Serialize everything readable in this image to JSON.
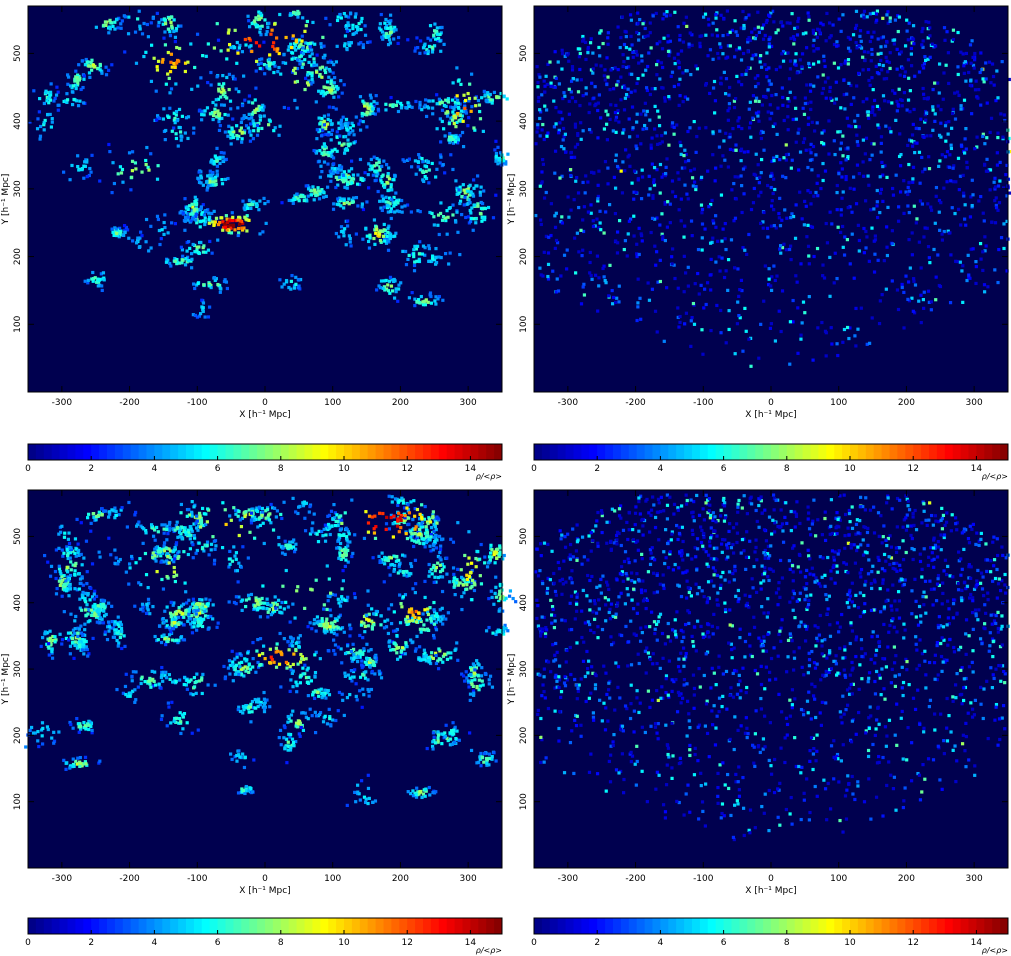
{
  "chart_data": [
    {
      "type": "heatmap",
      "panel": "top-left",
      "description_kind": "density",
      "xlabel": "X [h⁻¹ Mpc]",
      "ylabel": "Y [h⁻¹ Mpc]",
      "xlim": [
        -350,
        350
      ],
      "ylim": [
        0,
        570
      ],
      "x_ticks": [
        -300,
        -200,
        -100,
        0,
        100,
        200,
        300
      ],
      "y_ticks": [
        100,
        200,
        300,
        400,
        500
      ],
      "colorbar": {
        "label": "ρ/<ρ>",
        "range": [
          0,
          15
        ],
        "ticks": [
          0,
          2,
          4,
          6,
          8,
          10,
          12,
          14
        ]
      },
      "colormap": "jet",
      "background": "#00004f",
      "sparse": true,
      "seed": 11,
      "clusters": [
        {
          "x": -50,
          "y": 250,
          "weight": 8,
          "sx": 25,
          "sy": 8
        },
        {
          "x": 165,
          "y": 235,
          "weight": 4,
          "sx": 12,
          "sy": 10
        },
        {
          "x": 0,
          "y": 520,
          "weight": 6,
          "sx": 60,
          "sy": 25
        },
        {
          "x": -140,
          "y": 490,
          "weight": 5,
          "sx": 30,
          "sy": 20
        },
        {
          "x": 290,
          "y": 420,
          "weight": 5,
          "sx": 20,
          "sy": 30
        },
        {
          "x": -190,
          "y": 330,
          "weight": 3,
          "sx": 30,
          "sy": 15
        },
        {
          "x": 60,
          "y": 470,
          "weight": 4,
          "sx": 30,
          "sy": 20
        }
      ]
    },
    {
      "type": "heatmap",
      "panel": "top-right",
      "xlabel": "X [h⁻¹ Mpc]",
      "ylabel": "Y [h⁻¹ Mpc]",
      "xlim": [
        -350,
        350
      ],
      "ylim": [
        0,
        570
      ],
      "x_ticks": [
        -300,
        -200,
        -100,
        0,
        100,
        200,
        300
      ],
      "y_ticks": [
        100,
        200,
        300,
        400,
        500
      ],
      "colorbar": {
        "label": "ρ/<ρ>",
        "range": [
          0,
          15
        ],
        "ticks": [
          0,
          2,
          4,
          6,
          8,
          10,
          12,
          14
        ]
      },
      "colormap": "jet",
      "background": "#00004f",
      "sparse": false,
      "seed": 23
    },
    {
      "type": "heatmap",
      "panel": "bottom-left",
      "xlabel": "X [h⁻¹ Mpc]",
      "ylabel": "Y [h⁻¹ Mpc]",
      "xlim": [
        -350,
        350
      ],
      "ylim": [
        0,
        570
      ],
      "x_ticks": [
        -300,
        -200,
        -100,
        0,
        100,
        200,
        300
      ],
      "y_ticks": [
        100,
        200,
        300,
        400,
        500
      ],
      "colorbar": {
        "label": "ρ/<ρ>",
        "range": [
          0,
          15
        ],
        "ticks": [
          0,
          2,
          4,
          6,
          8,
          10,
          12,
          14
        ]
      },
      "colormap": "jet",
      "background": "#00004f",
      "sparse": true,
      "seed": 37,
      "clusters": [
        {
          "x": 20,
          "y": 320,
          "weight": 6,
          "sx": 30,
          "sy": 12
        },
        {
          "x": 220,
          "y": 390,
          "weight": 5,
          "sx": 20,
          "sy": 15
        },
        {
          "x": 180,
          "y": 525,
          "weight": 7,
          "sx": 50,
          "sy": 20
        },
        {
          "x": -150,
          "y": 460,
          "weight": 4,
          "sx": 30,
          "sy": 20
        },
        {
          "x": 300,
          "y": 450,
          "weight": 4,
          "sx": 15,
          "sy": 30
        },
        {
          "x": -60,
          "y": 520,
          "weight": 4,
          "sx": 60,
          "sy": 25
        },
        {
          "x": 60,
          "y": 420,
          "weight": 3,
          "sx": 50,
          "sy": 30
        }
      ]
    },
    {
      "type": "heatmap",
      "panel": "bottom-right",
      "xlabel": "X [h⁻¹ Mpc]",
      "ylabel": "Y [h⁻¹ Mpc]",
      "xlim": [
        -350,
        350
      ],
      "ylim": [
        0,
        570
      ],
      "x_ticks": [
        -300,
        -200,
        -100,
        0,
        100,
        200,
        300
      ],
      "y_ticks": [
        100,
        200,
        300,
        400,
        500
      ],
      "colorbar": {
        "label": "ρ/<ρ>",
        "range": [
          0,
          15
        ],
        "ticks": [
          0,
          2,
          4,
          6,
          8,
          10,
          12,
          14
        ]
      },
      "colormap": "jet",
      "background": "#00004f",
      "sparse": false,
      "seed": 59
    }
  ]
}
